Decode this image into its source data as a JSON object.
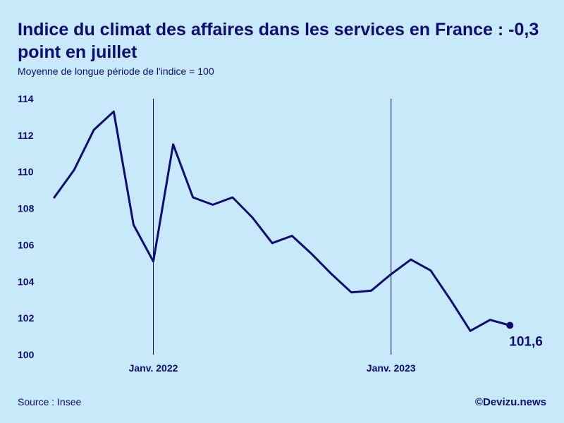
{
  "header": {
    "title": "Indice du climat des affaires dans les services en France : -0,3 point en juillet",
    "subtitle": "Moyenne de longue période de l'indice = 100"
  },
  "footer": {
    "source": "Source : Insee",
    "credit": "©Devizu.news"
  },
  "colors": {
    "background": "#c8e9fa",
    "line": "#0b0b7a"
  },
  "chart_data": {
    "type": "line",
    "title": "Indice du climat des affaires dans les services en France : -0,3 point en juillet",
    "subtitle": "Moyenne de longue période de l'indice = 100",
    "xlabel": "",
    "ylabel": "",
    "ylim": [
      100,
      114
    ],
    "yticks": [
      100,
      102,
      104,
      106,
      108,
      110,
      112,
      114
    ],
    "grid": false,
    "x_period": {
      "first": "2021-08",
      "last": "2023-07"
    },
    "xticks": [
      {
        "label": "Janv. 2022",
        "date": "2022-01"
      },
      {
        "label": "Janv. 2023",
        "date": "2023-01"
      }
    ],
    "series": [
      {
        "x": [
          "2021-08",
          "2021-09",
          "2021-10",
          "2021-11",
          "2021-12",
          "2022-01",
          "2022-02",
          "2022-03",
          "2022-04",
          "2022-05",
          "2022-06",
          "2022-07",
          "2022-08",
          "2022-09",
          "2022-10",
          "2022-11",
          "2022-12",
          "2023-01",
          "2023-02",
          "2023-03",
          "2023-04",
          "2023-05",
          "2023-06",
          "2023-07"
        ],
        "values": [
          108.6,
          110.1,
          112.3,
          113.3,
          107.1,
          105.1,
          111.5,
          108.6,
          108.2,
          108.6,
          107.5,
          106.1,
          106.5,
          105.5,
          104.4,
          103.4,
          103.5,
          104.4,
          105.2,
          104.6,
          103.0,
          101.3,
          101.9,
          101.6
        ]
      }
    ],
    "last_value_label": "101,6"
  }
}
